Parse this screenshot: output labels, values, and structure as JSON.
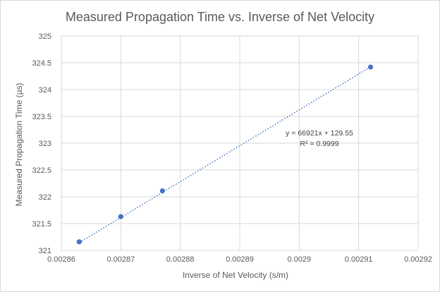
{
  "chart_data": {
    "type": "scatter",
    "title": "Measured Propagation Time vs. Inverse of Net Velocity",
    "xlabel": "Inverse of Net Velocity (s/m)",
    "ylabel": "Measured Propagation Time (µs)",
    "xlim": [
      0.00286,
      0.00292
    ],
    "ylim": [
      321,
      325
    ],
    "x_ticks": [
      "0.00286",
      "0.00287",
      "0.00288",
      "0.00289",
      "0.0029",
      "0.00291",
      "0.00292"
    ],
    "y_ticks": [
      "321",
      "321.5",
      "322",
      "322.5",
      "323",
      "323.5",
      "324",
      "324.5",
      "325"
    ],
    "grid": "vertical and horizontal",
    "marker_color": "#4472c4",
    "trendline": {
      "type": "linear",
      "style": "dotted",
      "color": "#4472c4",
      "slope": 66921,
      "intercept": 129.55,
      "equation": "y = 66921x + 129.55",
      "r_squared": "R² = 0.9999"
    },
    "series": [
      {
        "points": [
          {
            "x": 0.002863,
            "y": 321.16
          },
          {
            "x": 0.00287,
            "y": 321.63
          },
          {
            "x": 0.002877,
            "y": 322.11
          },
          {
            "x": 0.002912,
            "y": 324.42
          }
        ]
      }
    ]
  }
}
